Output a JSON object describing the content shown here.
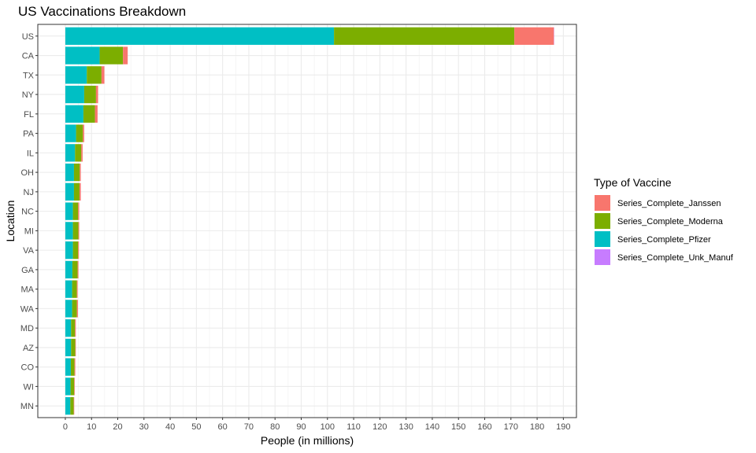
{
  "chart_data": {
    "type": "bar",
    "orientation": "horizontal",
    "stacked": true,
    "title": "US Vaccinations Breakdown",
    "xlabel": "People (in millions)",
    "ylabel": "Location",
    "xlim": [
      -10.5,
      195
    ],
    "x_ticks": [
      0,
      10,
      20,
      30,
      40,
      50,
      60,
      70,
      80,
      90,
      100,
      110,
      120,
      130,
      140,
      150,
      160,
      170,
      180,
      190
    ],
    "grid": true,
    "categories": [
      "US",
      "CA",
      "TX",
      "NY",
      "FL",
      "PA",
      "IL",
      "OH",
      "NJ",
      "NC",
      "MI",
      "VA",
      "GA",
      "MA",
      "WA",
      "MD",
      "AZ",
      "CO",
      "WI",
      "MN"
    ],
    "series": [
      {
        "name": "Series_Complete_Pfizer",
        "color": "#00BFC4",
        "values": [
          102.5,
          13.1,
          8.2,
          7.2,
          6.9,
          4.1,
          3.7,
          3.3,
          3.3,
          2.9,
          2.9,
          2.9,
          2.7,
          2.6,
          2.6,
          2.2,
          2.2,
          2.1,
          2.0,
          1.9
        ]
      },
      {
        "name": "Series_Complete_Moderna",
        "color": "#7CAE00",
        "values": [
          68.8,
          8.9,
          5.6,
          4.5,
          4.4,
          2.6,
          2.4,
          2.2,
          2.1,
          2.0,
          2.1,
          2.0,
          2.0,
          1.8,
          1.8,
          1.5,
          1.6,
          1.4,
          1.4,
          1.3
        ]
      },
      {
        "name": "Series_Complete_Janssen",
        "color": "#F8766D",
        "values": [
          15.1,
          1.8,
          1.1,
          0.8,
          1.0,
          0.5,
          0.5,
          0.4,
          0.5,
          0.4,
          0.3,
          0.3,
          0.3,
          0.3,
          0.4,
          0.3,
          0.2,
          0.3,
          0.2,
          0.2
        ]
      },
      {
        "name": "Series_Complete_Unk_Manuf",
        "color": "#C77CFF",
        "values": [
          0.05,
          0,
          0,
          0,
          0,
          0,
          0,
          0,
          0,
          0,
          0,
          0,
          0,
          0,
          0,
          0,
          0,
          0,
          0,
          0
        ]
      }
    ],
    "legend": {
      "title": "Type of Vaccine",
      "position": "right",
      "entries": [
        "Series_Complete_Janssen",
        "Series_Complete_Moderna",
        "Series_Complete_Pfizer",
        "Series_Complete_Unk_Manuf"
      ]
    }
  }
}
